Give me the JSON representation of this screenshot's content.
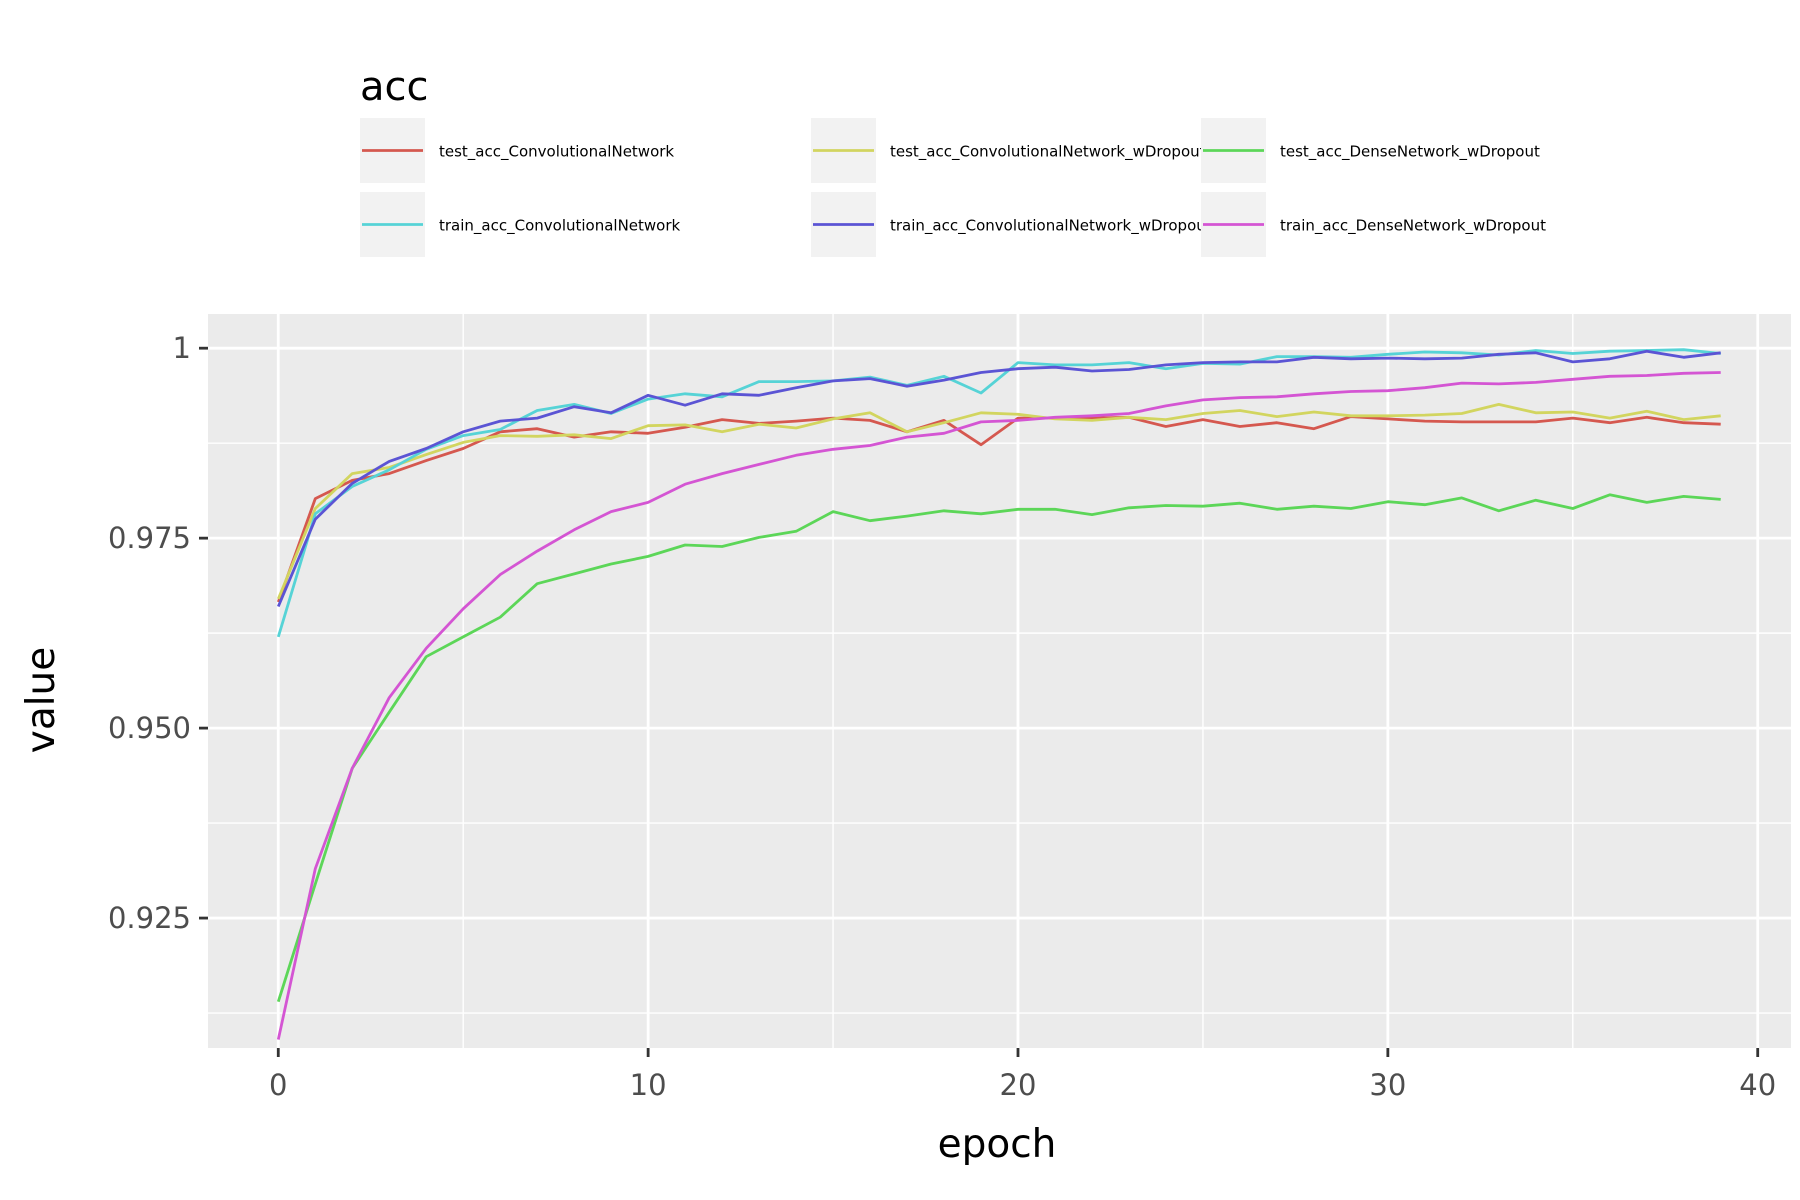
{
  "chart_data": {
    "type": "line",
    "xlabel": "epoch",
    "ylabel": "value",
    "xlim": [
      -1.9,
      40.9
    ],
    "ylim": [
      0.9079,
      1.0045
    ],
    "x_ticks": [
      0,
      10,
      20,
      30,
      40
    ],
    "y_ticks": [
      0.925,
      0.95,
      0.975,
      1
    ],
    "x_tick_labels": [
      "0",
      "10",
      "20",
      "30",
      "40"
    ],
    "y_tick_labels": [
      "0.925",
      "0.950",
      "0.975",
      "1"
    ],
    "grid": true,
    "legend": {
      "title": "acc",
      "position": "top"
    },
    "x": [
      0,
      1,
      2,
      3,
      4,
      5,
      6,
      7,
      8,
      9,
      10,
      11,
      12,
      13,
      14,
      15,
      16,
      17,
      18,
      19,
      20,
      21,
      22,
      23,
      24,
      25,
      26,
      27,
      28,
      29,
      30,
      31,
      32,
      33,
      34,
      35,
      36,
      37,
      38,
      39
    ],
    "series": [
      {
        "name": "test_acc_ConvolutionalNetwork",
        "color": "#d5584f",
        "values": [
          0.9666,
          0.9802,
          0.9826,
          0.9835,
          0.9852,
          0.9868,
          0.989,
          0.9894,
          0.9883,
          0.989,
          0.9888,
          0.9896,
          0.9906,
          0.9901,
          0.9904,
          0.9908,
          0.9905,
          0.989,
          0.9905,
          0.9873,
          0.9908,
          0.9908,
          0.9908,
          0.9909,
          0.9897,
          0.9906,
          0.9897,
          0.9902,
          0.9894,
          0.991,
          0.9907,
          0.9904,
          0.9903,
          0.9903,
          0.9903,
          0.9908,
          0.9902,
          0.9909,
          0.9902,
          0.99
        ]
      },
      {
        "name": "test_acc_ConvolutionalNetwork_wDropout",
        "color": "#d2d55f",
        "values": [
          0.967,
          0.9789,
          0.9835,
          0.9843,
          0.986,
          0.9876,
          0.9885,
          0.9884,
          0.9886,
          0.9881,
          0.9898,
          0.9899,
          0.989,
          0.99,
          0.9895,
          0.9907,
          0.9915,
          0.989,
          0.9902,
          0.9915,
          0.9913,
          0.9907,
          0.9905,
          0.9909,
          0.9906,
          0.9914,
          0.9918,
          0.991,
          0.9916,
          0.9911,
          0.9911,
          0.9912,
          0.9914,
          0.9926,
          0.9915,
          0.9916,
          0.9908,
          0.9917,
          0.9906,
          0.9911
        ]
      },
      {
        "name": "test_acc_DenseNetwork_wDropout",
        "color": "#5cd658",
        "values": [
          0.914,
          0.9295,
          0.9447,
          0.9521,
          0.9594,
          0.962,
          0.9646,
          0.969,
          0.9703,
          0.9716,
          0.9726,
          0.9741,
          0.9739,
          0.9751,
          0.9759,
          0.9785,
          0.9773,
          0.9779,
          0.9786,
          0.9782,
          0.9788,
          0.9788,
          0.9781,
          0.979,
          0.9793,
          0.9792,
          0.9796,
          0.9788,
          0.9792,
          0.9789,
          0.9798,
          0.9794,
          0.9803,
          0.9786,
          0.98,
          0.9789,
          0.9807,
          0.9797,
          0.9805,
          0.9801
        ]
      },
      {
        "name": "train_acc_ConvolutionalNetwork",
        "color": "#56d3d6",
        "values": [
          0.962,
          0.9782,
          0.9818,
          0.984,
          0.9867,
          0.9885,
          0.9893,
          0.9918,
          0.9926,
          0.9914,
          0.9933,
          0.994,
          0.9936,
          0.9956,
          0.9956,
          0.9957,
          0.9962,
          0.9951,
          0.9963,
          0.9941,
          0.9981,
          0.9978,
          0.9978,
          0.9981,
          0.9973,
          0.998,
          0.9979,
          0.9989,
          0.9989,
          0.9988,
          0.9992,
          0.9995,
          0.9994,
          0.9991,
          0.9997,
          0.9993,
          0.9996,
          0.9997,
          0.9998,
          0.9993
        ]
      },
      {
        "name": "train_acc_ConvolutionalNetwork_wDropout",
        "color": "#5b54d4",
        "values": [
          0.966,
          0.9775,
          0.9822,
          0.9851,
          0.9868,
          0.989,
          0.9904,
          0.9908,
          0.9923,
          0.9915,
          0.9938,
          0.9925,
          0.994,
          0.9938,
          0.9948,
          0.9957,
          0.996,
          0.995,
          0.9958,
          0.9968,
          0.9973,
          0.9975,
          0.997,
          0.9972,
          0.9978,
          0.9981,
          0.9982,
          0.9982,
          0.9988,
          0.9986,
          0.9987,
          0.9986,
          0.9987,
          0.9992,
          0.9994,
          0.9982,
          0.9986,
          0.9996,
          0.9988,
          0.9994
        ]
      },
      {
        "name": "train_acc_DenseNetwork_wDropout",
        "color": "#d455d3",
        "values": [
          0.909,
          0.9315,
          0.9447,
          0.954,
          0.9605,
          0.9657,
          0.9702,
          0.9733,
          0.9761,
          0.9785,
          0.9797,
          0.9821,
          0.9835,
          0.9847,
          0.9859,
          0.9867,
          0.9872,
          0.9883,
          0.9888,
          0.9903,
          0.9905,
          0.9909,
          0.9911,
          0.9914,
          0.9924,
          0.9932,
          0.9935,
          0.9936,
          0.994,
          0.9943,
          0.9944,
          0.9948,
          0.9954,
          0.9953,
          0.9955,
          0.9959,
          0.9963,
          0.9964,
          0.9967,
          0.9968
        ]
      }
    ]
  }
}
